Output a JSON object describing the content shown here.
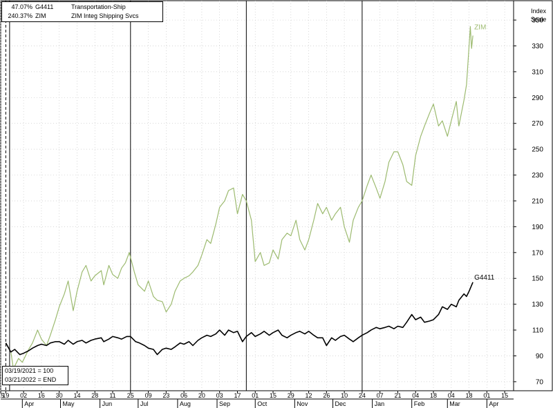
{
  "legend": [
    {
      "pct": "47.07%",
      "symbol": "G4411",
      "name": "Transportation-Ship"
    },
    {
      "pct": "240.37%",
      "symbol": "ZIM",
      "name": "ZIM Integ Shipping Svcs"
    }
  ],
  "notes": {
    "base": "03/19/2021 = 100",
    "end": "03/21/2022 = END"
  },
  "axis": {
    "title_line1": "Index",
    "title_line2": "Scale"
  },
  "chart_data": {
    "type": "line",
    "x_start": "2021-03-15",
    "x_end": "2022-04-22",
    "ylim": [
      63,
      365
    ],
    "y_ticks": [
      70,
      90,
      110,
      130,
      150,
      170,
      190,
      210,
      230,
      250,
      270,
      290,
      310,
      330,
      350
    ],
    "x_ticks": [
      {
        "date": "2021-03-15",
        "label": "15"
      },
      {
        "date": "2021-03-19",
        "label": "19"
      },
      {
        "date": "2021-04-02",
        "label": "02"
      },
      {
        "date": "2021-04-16",
        "label": "16"
      },
      {
        "date": "2021-04-30",
        "label": "30"
      },
      {
        "date": "2021-05-14",
        "label": "14"
      },
      {
        "date": "2021-05-28",
        "label": "28"
      },
      {
        "date": "2021-06-11",
        "label": "11"
      },
      {
        "date": "2021-06-25",
        "label": "25"
      },
      {
        "date": "2021-07-09",
        "label": "09"
      },
      {
        "date": "2021-07-23",
        "label": "23"
      },
      {
        "date": "2021-08-06",
        "label": "06"
      },
      {
        "date": "2021-08-20",
        "label": "20"
      },
      {
        "date": "2021-09-03",
        "label": "03"
      },
      {
        "date": "2021-09-17",
        "label": "17"
      },
      {
        "date": "2021-10-01",
        "label": "01"
      },
      {
        "date": "2021-10-15",
        "label": "15"
      },
      {
        "date": "2021-10-29",
        "label": "29"
      },
      {
        "date": "2021-11-12",
        "label": "12"
      },
      {
        "date": "2021-11-26",
        "label": "26"
      },
      {
        "date": "2021-12-10",
        "label": "10"
      },
      {
        "date": "2021-12-24",
        "label": "24"
      },
      {
        "date": "2022-01-07",
        "label": "07"
      },
      {
        "date": "2022-01-21",
        "label": "21"
      },
      {
        "date": "2022-02-04",
        "label": "04"
      },
      {
        "date": "2022-02-18",
        "label": "18"
      },
      {
        "date": "2022-03-04",
        "label": "04"
      },
      {
        "date": "2022-03-18",
        "label": "18"
      },
      {
        "date": "2022-04-01",
        "label": "01"
      },
      {
        "date": "2022-04-15",
        "label": "15"
      }
    ],
    "months": [
      {
        "date": "2021-04-01",
        "label": "Apr"
      },
      {
        "date": "2021-05-01",
        "label": "May"
      },
      {
        "date": "2021-06-01",
        "label": "Jun"
      },
      {
        "date": "2021-07-01",
        "label": "Jul"
      },
      {
        "date": "2021-08-01",
        "label": "Aug"
      },
      {
        "date": "2021-09-01",
        "label": "Sep"
      },
      {
        "date": "2021-10-01",
        "label": "Oct"
      },
      {
        "date": "2021-11-01",
        "label": "Nov"
      },
      {
        "date": "2021-12-01",
        "label": "Dec"
      },
      {
        "date": "2022-01-01",
        "label": "Jan"
      },
      {
        "date": "2022-02-01",
        "label": "Feb"
      },
      {
        "date": "2022-03-01",
        "label": "Mar"
      },
      {
        "date": "2022-04-01",
        "label": "Apr"
      }
    ],
    "quarter_lines": [
      "2021-03-22",
      "2021-06-25",
      "2021-09-24",
      "2021-12-24"
    ],
    "base_line": "2021-03-19",
    "series": [
      {
        "name": "ZIM",
        "color": "#9cba6f",
        "points": [
          [
            "2021-03-19",
            100
          ],
          [
            "2021-03-23",
            93
          ],
          [
            "2021-03-25",
            80
          ],
          [
            "2021-03-29",
            88
          ],
          [
            "2021-04-01",
            85
          ],
          [
            "2021-04-06",
            95
          ],
          [
            "2021-04-09",
            100
          ],
          [
            "2021-04-13",
            110
          ],
          [
            "2021-04-16",
            103
          ],
          [
            "2021-04-20",
            98
          ],
          [
            "2021-04-23",
            106
          ],
          [
            "2021-04-27",
            118
          ],
          [
            "2021-04-30",
            128
          ],
          [
            "2021-05-04",
            138
          ],
          [
            "2021-05-07",
            148
          ],
          [
            "2021-05-11",
            125
          ],
          [
            "2021-05-14",
            140
          ],
          [
            "2021-05-18",
            155
          ],
          [
            "2021-05-21",
            160
          ],
          [
            "2021-05-25",
            148
          ],
          [
            "2021-05-28",
            152
          ],
          [
            "2021-06-02",
            156
          ],
          [
            "2021-06-04",
            145
          ],
          [
            "2021-06-08",
            160
          ],
          [
            "2021-06-11",
            153
          ],
          [
            "2021-06-15",
            150
          ],
          [
            "2021-06-18",
            158
          ],
          [
            "2021-06-21",
            162
          ],
          [
            "2021-06-24",
            170
          ],
          [
            "2021-06-28",
            155
          ],
          [
            "2021-07-01",
            145
          ],
          [
            "2021-07-06",
            140
          ],
          [
            "2021-07-09",
            148
          ],
          [
            "2021-07-13",
            136
          ],
          [
            "2021-07-16",
            133
          ],
          [
            "2021-07-20",
            132
          ],
          [
            "2021-07-23",
            124
          ],
          [
            "2021-07-27",
            130
          ],
          [
            "2021-07-30",
            140
          ],
          [
            "2021-08-03",
            148
          ],
          [
            "2021-08-06",
            150
          ],
          [
            "2021-08-10",
            152
          ],
          [
            "2021-08-13",
            155
          ],
          [
            "2021-08-17",
            160
          ],
          [
            "2021-08-20",
            168
          ],
          [
            "2021-08-24",
            180
          ],
          [
            "2021-08-27",
            177
          ],
          [
            "2021-08-31",
            192
          ],
          [
            "2021-09-03",
            205
          ],
          [
            "2021-09-07",
            210
          ],
          [
            "2021-09-10",
            218
          ],
          [
            "2021-09-14",
            220
          ],
          [
            "2021-09-17",
            200
          ],
          [
            "2021-09-21",
            215
          ],
          [
            "2021-09-24",
            210
          ],
          [
            "2021-09-28",
            195
          ],
          [
            "2021-10-01",
            163
          ],
          [
            "2021-10-05",
            170
          ],
          [
            "2021-10-08",
            160
          ],
          [
            "2021-10-12",
            162
          ],
          [
            "2021-10-15",
            172
          ],
          [
            "2021-10-19",
            165
          ],
          [
            "2021-10-22",
            180
          ],
          [
            "2021-10-26",
            185
          ],
          [
            "2021-10-29",
            183
          ],
          [
            "2021-11-02",
            195
          ],
          [
            "2021-11-05",
            180
          ],
          [
            "2021-11-09",
            172
          ],
          [
            "2021-11-12",
            180
          ],
          [
            "2021-11-16",
            195
          ],
          [
            "2021-11-19",
            208
          ],
          [
            "2021-11-23",
            200
          ],
          [
            "2021-11-26",
            205
          ],
          [
            "2021-11-30",
            195
          ],
          [
            "2021-12-03",
            200
          ],
          [
            "2021-12-07",
            205
          ],
          [
            "2021-12-10",
            190
          ],
          [
            "2021-12-14",
            178
          ],
          [
            "2021-12-17",
            195
          ],
          [
            "2021-12-21",
            205
          ],
          [
            "2021-12-24",
            210
          ],
          [
            "2021-12-28",
            222
          ],
          [
            "2021-12-31",
            230
          ],
          [
            "2022-01-04",
            220
          ],
          [
            "2022-01-07",
            212
          ],
          [
            "2022-01-11",
            225
          ],
          [
            "2022-01-14",
            240
          ],
          [
            "2022-01-18",
            248
          ],
          [
            "2022-01-21",
            248
          ],
          [
            "2022-01-25",
            238
          ],
          [
            "2022-01-28",
            225
          ],
          [
            "2022-02-01",
            222
          ],
          [
            "2022-02-04",
            245
          ],
          [
            "2022-02-08",
            260
          ],
          [
            "2022-02-11",
            268
          ],
          [
            "2022-02-15",
            278
          ],
          [
            "2022-02-18",
            285
          ],
          [
            "2022-02-22",
            268
          ],
          [
            "2022-02-25",
            272
          ],
          [
            "2022-03-01",
            260
          ],
          [
            "2022-03-04",
            272
          ],
          [
            "2022-03-08",
            287
          ],
          [
            "2022-03-10",
            268
          ],
          [
            "2022-03-14",
            288
          ],
          [
            "2022-03-16",
            300
          ],
          [
            "2022-03-18",
            330
          ],
          [
            "2022-03-19",
            345
          ],
          [
            "2022-03-20",
            328
          ],
          [
            "2022-03-21",
            338
          ]
        ]
      },
      {
        "name": "G4411",
        "color": "#000000",
        "points": [
          [
            "2021-03-19",
            100
          ],
          [
            "2021-03-23",
            93
          ],
          [
            "2021-03-26",
            95
          ],
          [
            "2021-03-30",
            91
          ],
          [
            "2021-04-02",
            92
          ],
          [
            "2021-04-06",
            94
          ],
          [
            "2021-04-09",
            96
          ],
          [
            "2021-04-13",
            98
          ],
          [
            "2021-04-16",
            99
          ],
          [
            "2021-04-20",
            98
          ],
          [
            "2021-04-23",
            100
          ],
          [
            "2021-04-27",
            101
          ],
          [
            "2021-04-30",
            101
          ],
          [
            "2021-05-04",
            99
          ],
          [
            "2021-05-07",
            102
          ],
          [
            "2021-05-11",
            99
          ],
          [
            "2021-05-14",
            101
          ],
          [
            "2021-05-18",
            102
          ],
          [
            "2021-05-21",
            100
          ],
          [
            "2021-05-25",
            102
          ],
          [
            "2021-05-28",
            103
          ],
          [
            "2021-06-02",
            104
          ],
          [
            "2021-06-04",
            101
          ],
          [
            "2021-06-08",
            103
          ],
          [
            "2021-06-11",
            105
          ],
          [
            "2021-06-15",
            104
          ],
          [
            "2021-06-18",
            103
          ],
          [
            "2021-06-22",
            105
          ],
          [
            "2021-06-25",
            105
          ],
          [
            "2021-06-29",
            101
          ],
          [
            "2021-07-02",
            100
          ],
          [
            "2021-07-06",
            98
          ],
          [
            "2021-07-09",
            96
          ],
          [
            "2021-07-13",
            95
          ],
          [
            "2021-07-16",
            91
          ],
          [
            "2021-07-20",
            95
          ],
          [
            "2021-07-23",
            96
          ],
          [
            "2021-07-27",
            95
          ],
          [
            "2021-07-30",
            97
          ],
          [
            "2021-08-03",
            100
          ],
          [
            "2021-08-06",
            99
          ],
          [
            "2021-08-10",
            101
          ],
          [
            "2021-08-13",
            98
          ],
          [
            "2021-08-17",
            102
          ],
          [
            "2021-08-20",
            104
          ],
          [
            "2021-08-24",
            106
          ],
          [
            "2021-08-27",
            105
          ],
          [
            "2021-08-31",
            107
          ],
          [
            "2021-09-03",
            110
          ],
          [
            "2021-09-07",
            106
          ],
          [
            "2021-09-10",
            110
          ],
          [
            "2021-09-14",
            108
          ],
          [
            "2021-09-17",
            109
          ],
          [
            "2021-09-21",
            101
          ],
          [
            "2021-09-24",
            105
          ],
          [
            "2021-09-28",
            108
          ],
          [
            "2021-10-01",
            105
          ],
          [
            "2021-10-05",
            107
          ],
          [
            "2021-10-08",
            109
          ],
          [
            "2021-10-12",
            106
          ],
          [
            "2021-10-15",
            108
          ],
          [
            "2021-10-19",
            110
          ],
          [
            "2021-10-22",
            106
          ],
          [
            "2021-10-26",
            104
          ],
          [
            "2021-10-29",
            106
          ],
          [
            "2021-11-02",
            108
          ],
          [
            "2021-11-05",
            109
          ],
          [
            "2021-11-09",
            107
          ],
          [
            "2021-11-12",
            109
          ],
          [
            "2021-11-16",
            106
          ],
          [
            "2021-11-19",
            104
          ],
          [
            "2021-11-23",
            104
          ],
          [
            "2021-11-26",
            98
          ],
          [
            "2021-11-30",
            104
          ],
          [
            "2021-12-03",
            102
          ],
          [
            "2021-12-07",
            105
          ],
          [
            "2021-12-10",
            106
          ],
          [
            "2021-12-14",
            103
          ],
          [
            "2021-12-17",
            101
          ],
          [
            "2021-12-21",
            104
          ],
          [
            "2021-12-24",
            106
          ],
          [
            "2021-12-28",
            108
          ],
          [
            "2021-12-31",
            110
          ],
          [
            "2022-01-04",
            112
          ],
          [
            "2022-01-07",
            111
          ],
          [
            "2022-01-11",
            112
          ],
          [
            "2022-01-14",
            113
          ],
          [
            "2022-01-18",
            111
          ],
          [
            "2022-01-21",
            113
          ],
          [
            "2022-01-25",
            112
          ],
          [
            "2022-01-28",
            116
          ],
          [
            "2022-02-01",
            122
          ],
          [
            "2022-02-04",
            118
          ],
          [
            "2022-02-08",
            120
          ],
          [
            "2022-02-11",
            116
          ],
          [
            "2022-02-15",
            117
          ],
          [
            "2022-02-18",
            118
          ],
          [
            "2022-02-22",
            122
          ],
          [
            "2022-02-25",
            128
          ],
          [
            "2022-03-01",
            126
          ],
          [
            "2022-03-04",
            130
          ],
          [
            "2022-03-08",
            128
          ],
          [
            "2022-03-10",
            133
          ],
          [
            "2022-03-14",
            138
          ],
          [
            "2022-03-16",
            136
          ],
          [
            "2022-03-18",
            140
          ],
          [
            "2022-03-21",
            147
          ]
        ]
      }
    ]
  }
}
